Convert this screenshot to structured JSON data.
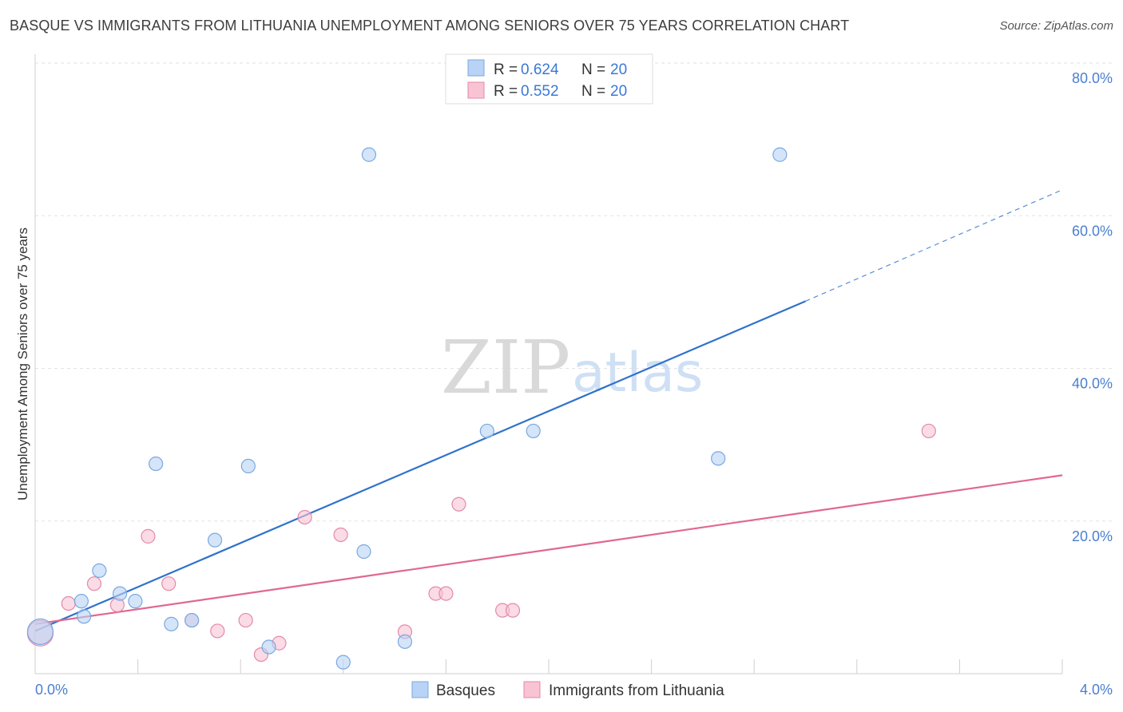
{
  "title": "BASQUE VS IMMIGRANTS FROM LITHUANIA UNEMPLOYMENT AMONG SENIORS OVER 75 YEARS CORRELATION CHART",
  "source": "Source: ZipAtlas.com",
  "watermark": {
    "zip": "ZIP",
    "atlas": "atlas"
  },
  "colors": {
    "blue_fill": "#b8d3f5",
    "blue_stroke": "#7aa8e0",
    "blue_line": "#2f72cc",
    "pink_fill": "#f8c3d3",
    "pink_stroke": "#e38aa8",
    "pink_line": "#e0688f",
    "grid": "#e2e2e2",
    "tick_text": "#4a7fd0"
  },
  "legend": {
    "rows": [
      {
        "r_label": "R = ",
        "r_value": "0.624",
        "n_label": "N = ",
        "n_value": "20"
      },
      {
        "r_label": "R = ",
        "r_value": "0.552",
        "n_label": "N = ",
        "n_value": "20"
      }
    ]
  },
  "chart_data": {
    "type": "scatter",
    "title": "BASQUE VS IMMIGRANTS FROM LITHUANIA UNEMPLOYMENT AMONG SENIORS OVER 75 YEARS CORRELATION CHART",
    "xlabel": "",
    "ylabel": "Unemployment Among Seniors over 75 years",
    "xlim": [
      0,
      4.0
    ],
    "ylim": [
      0,
      80
    ],
    "x_tick_labels": [
      "0.0%",
      "4.0%"
    ],
    "y_ticks": [
      20,
      40,
      60,
      80
    ],
    "y_tick_labels": [
      "20.0%",
      "40.0%",
      "60.0%",
      "80.0%"
    ],
    "grid": true,
    "series": [
      {
        "name": "Basques",
        "color": "#b8d3f5",
        "points": [
          {
            "x": 0.02,
            "y": 5.5,
            "big": true
          },
          {
            "x": 0.18,
            "y": 9.5
          },
          {
            "x": 0.19,
            "y": 7.5
          },
          {
            "x": 0.25,
            "y": 13.5
          },
          {
            "x": 0.33,
            "y": 10.5
          },
          {
            "x": 0.39,
            "y": 9.5
          },
          {
            "x": 0.47,
            "y": 27.5
          },
          {
            "x": 0.53,
            "y": 6.5
          },
          {
            "x": 0.61,
            "y": 7.0
          },
          {
            "x": 0.7,
            "y": 17.5
          },
          {
            "x": 0.83,
            "y": 27.2
          },
          {
            "x": 0.91,
            "y": 3.5
          },
          {
            "x": 1.2,
            "y": 1.5
          },
          {
            "x": 1.28,
            "y": 16.0
          },
          {
            "x": 1.3,
            "y": 68.0
          },
          {
            "x": 1.44,
            "y": 4.2
          },
          {
            "x": 1.76,
            "y": 31.8
          },
          {
            "x": 1.94,
            "y": 31.8
          },
          {
            "x": 2.66,
            "y": 28.2
          },
          {
            "x": 2.9,
            "y": 68.0
          }
        ],
        "trend": {
          "x0": 0.0,
          "y0": 5.6,
          "x1": 3.0,
          "y1": 48.8,
          "dash_x1": 4.0,
          "dash_y1": 63.4
        }
      },
      {
        "name": "Immigrants from Lithuania",
        "color": "#f8c3d3",
        "points": [
          {
            "x": 0.02,
            "y": 5.3,
            "big": true
          },
          {
            "x": 0.13,
            "y": 9.2
          },
          {
            "x": 0.23,
            "y": 11.8
          },
          {
            "x": 0.32,
            "y": 9.0
          },
          {
            "x": 0.44,
            "y": 18.0
          },
          {
            "x": 0.52,
            "y": 11.8
          },
          {
            "x": 0.61,
            "y": 7.0
          },
          {
            "x": 0.71,
            "y": 5.6
          },
          {
            "x": 0.82,
            "y": 7.0
          },
          {
            "x": 0.88,
            "y": 2.5
          },
          {
            "x": 0.95,
            "y": 4.0
          },
          {
            "x": 1.05,
            "y": 20.5
          },
          {
            "x": 1.19,
            "y": 18.2
          },
          {
            "x": 1.44,
            "y": 5.5
          },
          {
            "x": 1.56,
            "y": 10.5
          },
          {
            "x": 1.6,
            "y": 10.5
          },
          {
            "x": 1.65,
            "y": 22.2
          },
          {
            "x": 1.82,
            "y": 8.3
          },
          {
            "x": 1.86,
            "y": 8.3
          },
          {
            "x": 3.48,
            "y": 31.8
          }
        ],
        "trend": {
          "x0": 0.0,
          "y0": 6.5,
          "x1": 4.0,
          "y1": 26.0
        }
      }
    ]
  }
}
